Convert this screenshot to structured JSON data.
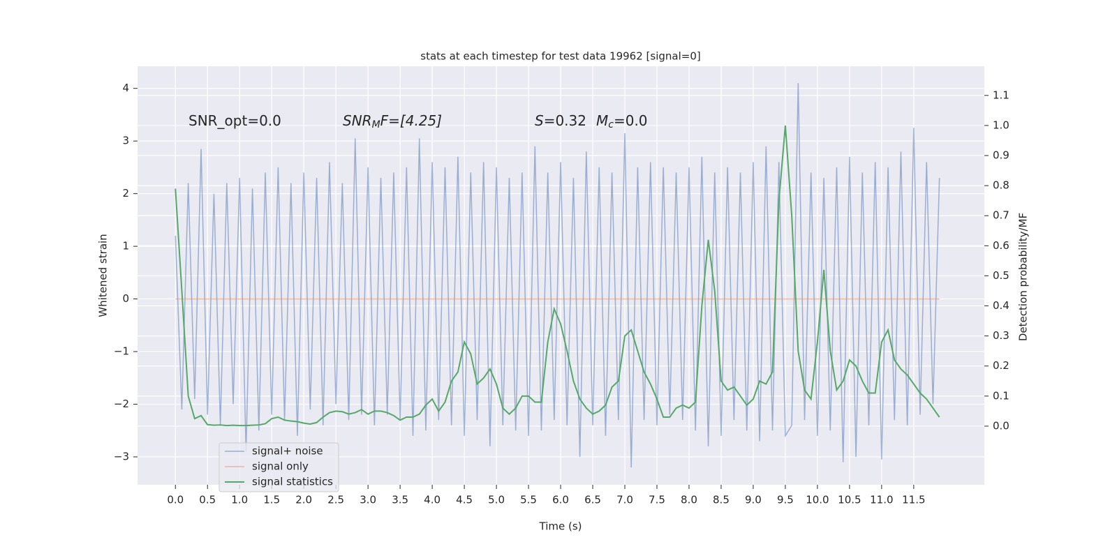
{
  "chart_data": {
    "type": "line",
    "title": "stats at each timestep for test data 19962 [signal=0]",
    "x_label": "Time (s)",
    "y_label": "Whitened strain",
    "y2_label": "Detection probability/MF",
    "annotations": [
      [
        "SNR_opt=0.0"
      ],
      [
        "SNR",
        "M",
        "F=[4.25]"
      ],
      [
        "S",
        "=0.32",
        "M",
        "c",
        "=0.0"
      ]
    ],
    "x": [
      0.0,
      0.1,
      0.2,
      0.3,
      0.4,
      0.5,
      0.6,
      0.7,
      0.8,
      0.9,
      1.0,
      1.1,
      1.2,
      1.3,
      1.4,
      1.5,
      1.6,
      1.7,
      1.8,
      1.9,
      2.0,
      2.1,
      2.2,
      2.3,
      2.4,
      2.5,
      2.6,
      2.7,
      2.8,
      2.9,
      3.0,
      3.1,
      3.2,
      3.3,
      3.4,
      3.5,
      3.6,
      3.7,
      3.8,
      3.9,
      4.0,
      4.1,
      4.2,
      4.3,
      4.4,
      4.5,
      4.6,
      4.7,
      4.8,
      4.9,
      5.0,
      5.1,
      5.2,
      5.3,
      5.4,
      5.5,
      5.6,
      5.7,
      5.8,
      5.9,
      6.0,
      6.1,
      6.2,
      6.3,
      6.4,
      6.5,
      6.6,
      6.7,
      6.8,
      6.9,
      7.0,
      7.1,
      7.2,
      7.3,
      7.4,
      7.5,
      7.6,
      7.7,
      7.8,
      7.9,
      8.0,
      8.1,
      8.2,
      8.3,
      8.4,
      8.5,
      8.6,
      8.7,
      8.8,
      8.9,
      9.0,
      9.1,
      9.2,
      9.3,
      9.4,
      9.5,
      9.6,
      9.7,
      9.8,
      9.9,
      10.0,
      10.1,
      10.2,
      10.3,
      10.4,
      10.5,
      10.6,
      10.7,
      10.8,
      10.9,
      11.0,
      11.1,
      11.2,
      11.3,
      11.4,
      11.5,
      11.6,
      11.7,
      11.8,
      11.9
    ],
    "series": [
      {
        "name": "signal+ noise",
        "color": "#4c72b0",
        "alpha": 0.5,
        "axis": "y",
        "values": [
          1.2,
          -2.1,
          2.2,
          -1.9,
          2.85,
          -2.2,
          2.0,
          -2.4,
          2.2,
          -2.0,
          2.3,
          -2.9,
          2.1,
          -2.5,
          2.4,
          -2.2,
          2.5,
          -2.3,
          2.2,
          -2.6,
          2.4,
          -2.1,
          2.3,
          -2.4,
          2.6,
          -2.0,
          2.2,
          -2.3,
          3.05,
          -2.2,
          2.5,
          -2.4,
          2.3,
          -2.2,
          2.4,
          -2.3,
          2.5,
          -2.6,
          3.05,
          -2.5,
          2.6,
          -2.3,
          2.5,
          -2.4,
          2.7,
          -2.6,
          2.4,
          -2.3,
          2.6,
          -2.8,
          2.5,
          -2.4,
          2.3,
          -2.5,
          2.4,
          -2.6,
          2.9,
          -2.5,
          2.4,
          -2.3,
          2.6,
          -2.4,
          2.3,
          -3.0,
          2.8,
          -2.4,
          2.5,
          -2.6,
          2.4,
          -2.3,
          3.15,
          -3.2,
          2.5,
          -2.3,
          2.6,
          -2.4,
          2.5,
          -2.2,
          2.4,
          -2.3,
          2.5,
          -2.5,
          2.7,
          -2.8,
          2.4,
          -2.6,
          2.5,
          -2.3,
          2.4,
          -2.5,
          2.6,
          -2.7,
          2.9,
          -2.5,
          2.6,
          -2.6,
          -2.4,
          4.1,
          -2.3,
          2.4,
          -2.6,
          2.3,
          -2.5,
          2.5,
          -3.1,
          2.7,
          -3.0,
          2.4,
          -2.4,
          2.6,
          -3.05,
          2.5,
          -2.3,
          2.8,
          -2.4,
          3.25,
          -2.2,
          2.6,
          -2.0,
          2.3
        ]
      },
      {
        "name": "signal only",
        "color": "#dd8452",
        "alpha": 0.5,
        "axis": "y",
        "values": [
          0,
          0,
          0,
          0,
          0,
          0,
          0,
          0,
          0,
          0,
          0,
          0,
          0,
          0,
          0,
          0,
          0,
          0,
          0,
          0,
          0,
          0,
          0,
          0,
          0,
          0,
          0,
          0,
          0,
          0,
          0,
          0,
          0,
          0,
          0,
          0,
          0,
          0,
          0,
          0,
          0,
          0,
          0,
          0,
          0,
          0,
          0,
          0,
          0,
          0,
          0,
          0,
          0,
          0,
          0,
          0,
          0,
          0,
          0,
          0,
          0,
          0,
          0,
          0,
          0,
          0,
          0,
          0,
          0,
          0,
          0,
          0,
          0,
          0,
          0,
          0,
          0,
          0,
          0,
          0,
          0,
          0,
          0,
          0,
          0,
          0,
          0,
          0,
          0,
          0,
          0,
          0,
          0,
          0,
          0,
          0,
          0,
          0,
          0,
          0,
          0,
          0,
          0,
          0,
          0,
          0,
          0,
          0,
          0,
          0,
          0,
          0,
          0,
          0,
          0,
          0,
          0,
          0,
          0,
          0
        ]
      },
      {
        "name": "signal statistics",
        "color": "#55a868",
        "alpha": 1,
        "axis": "y2",
        "values": [
          0.79,
          0.45,
          0.1,
          0.025,
          0.035,
          0.005,
          0.003,
          0.004,
          0.002,
          0.003,
          0.002,
          0.002,
          0.003,
          0.004,
          0.008,
          0.025,
          0.03,
          0.02,
          0.017,
          0.015,
          0.01,
          0.007,
          0.012,
          0.03,
          0.045,
          0.05,
          0.048,
          0.04,
          0.045,
          0.055,
          0.04,
          0.05,
          0.05,
          0.045,
          0.035,
          0.02,
          0.03,
          0.03,
          0.04,
          0.07,
          0.09,
          0.05,
          0.08,
          0.15,
          0.18,
          0.28,
          0.24,
          0.14,
          0.16,
          0.19,
          0.14,
          0.06,
          0.04,
          0.06,
          0.1,
          0.1,
          0.08,
          0.08,
          0.28,
          0.39,
          0.34,
          0.25,
          0.15,
          0.09,
          0.06,
          0.04,
          0.05,
          0.07,
          0.13,
          0.15,
          0.3,
          0.32,
          0.25,
          0.18,
          0.14,
          0.09,
          0.03,
          0.03,
          0.06,
          0.07,
          0.06,
          0.08,
          0.4,
          0.62,
          0.45,
          0.15,
          0.12,
          0.13,
          0.1,
          0.07,
          0.09,
          0.15,
          0.14,
          0.18,
          0.75,
          1.0,
          0.7,
          0.25,
          0.12,
          0.09,
          0.28,
          0.52,
          0.25,
          0.12,
          0.15,
          0.22,
          0.2,
          0.15,
          0.11,
          0.11,
          0.28,
          0.32,
          0.22,
          0.19,
          0.17,
          0.14,
          0.11,
          0.09,
          0.06,
          0.03
        ]
      }
    ],
    "xlim": [
      -0.59,
      12.6
    ],
    "ylim": [
      -3.53,
      4.42
    ],
    "y2lim": [
      -0.195,
      1.197
    ],
    "xticks": [
      {
        "value": 0,
        "label": "0.0"
      },
      0.5,
      {
        "value": 1,
        "label": "1.0"
      },
      1.5,
      {
        "value": 2,
        "label": "2.0"
      },
      2.5,
      {
        "value": 3,
        "label": "3.0"
      },
      3.5,
      {
        "value": 4,
        "label": "4.0"
      },
      4.5,
      {
        "value": 5,
        "label": "5.0"
      },
      5.5,
      {
        "value": 6,
        "label": "6.0"
      },
      6.5,
      {
        "value": 7,
        "label": "7.0"
      },
      7.5,
      {
        "value": 8,
        "label": "8.0"
      },
      8.5,
      {
        "value": 9,
        "label": "9.0"
      },
      9.5,
      {
        "value": 10,
        "label": "10.0"
      },
      10.5,
      {
        "value": 11,
        "label": "11.0"
      },
      11.5
    ],
    "yticks": [
      {
        "value": -3,
        "label": "−3"
      },
      {
        "value": -2,
        "label": "−2"
      },
      {
        "value": -1,
        "label": "−1"
      },
      0,
      1,
      2,
      3,
      4
    ],
    "y2ticks": [
      {
        "value": 0,
        "label": "0.0"
      },
      0.1,
      0.2,
      0.3,
      0.4,
      0.5,
      0.6,
      0.7,
      0.8,
      0.9,
      {
        "value": 1,
        "label": "1.0"
      },
      1.1
    ],
    "grid": true,
    "legend": "lower left"
  }
}
